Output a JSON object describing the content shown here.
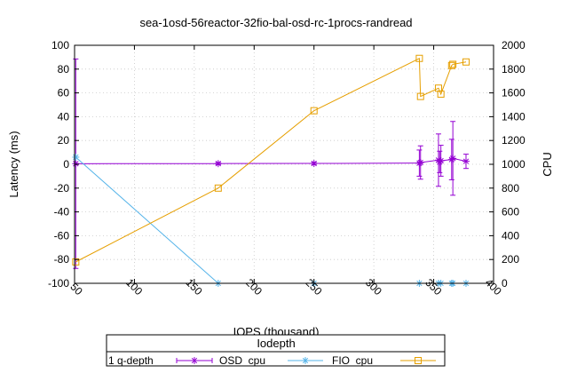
{
  "chart_data": {
    "type": "line",
    "title": "sea-1osd-56reactor-32fio-bal-osd-rc-1procs-randread",
    "xlabel": "IOPS (thousand)",
    "ylabel": "Latency (ms)",
    "y2label": "CPU",
    "xlim": [
      50,
      400
    ],
    "ylim": [
      -100,
      100
    ],
    "y2lim": [
      0,
      2000
    ],
    "xticks": [
      50,
      100,
      150,
      200,
      250,
      300,
      350,
      400
    ],
    "yticks": [
      -100,
      -80,
      -60,
      -40,
      -20,
      0,
      20,
      40,
      60,
      80,
      100
    ],
    "y2ticks": [
      0,
      200,
      400,
      600,
      800,
      1000,
      1200,
      1400,
      1600,
      1800,
      2000
    ],
    "grid": true,
    "legend": {
      "title": "Iodepth",
      "placement": "bottom-center",
      "entries": [
        "1 q-depth",
        "OSD_cpu",
        "FIO_cpu"
      ]
    },
    "series": [
      {
        "name": "1 q-depth",
        "axis": "y",
        "color": "#9400d3",
        "marker": "star",
        "x": [
          51,
          170,
          250,
          338,
          339,
          354,
          355,
          356,
          365,
          366,
          377
        ],
        "y": [
          0.5,
          0.6,
          0.7,
          1.0,
          1.5,
          3.5,
          2.0,
          3.0,
          4.0,
          5.0,
          2.5
        ],
        "err": [
          88,
          1,
          1,
          11,
          14,
          22,
          9,
          13,
          17,
          31,
          6
        ]
      },
      {
        "name": "OSD_cpu",
        "axis": "y2",
        "color": "#56b4e9",
        "marker": "star",
        "x": [
          51,
          170,
          250,
          338,
          354,
          356,
          365,
          366,
          377
        ],
        "y": [
          1060,
          0,
          0,
          0,
          0,
          0,
          0,
          0,
          0
        ]
      },
      {
        "name": "FIO_cpu",
        "axis": "y2",
        "color": "#e69f00",
        "marker": "square",
        "x": [
          51,
          170,
          250,
          338,
          339,
          354,
          356,
          365,
          366,
          377
        ],
        "y": [
          180,
          800,
          1450,
          1890,
          1570,
          1640,
          1590,
          1830,
          1840,
          1860
        ]
      }
    ]
  }
}
